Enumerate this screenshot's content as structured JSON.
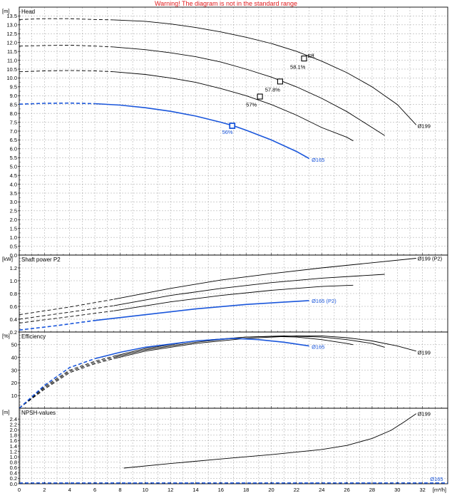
{
  "banner": "Warning! The diagram is not in the standard range",
  "colors": {
    "blue": "#1a56db",
    "black": "#000000",
    "grid": "#888888"
  },
  "x_axis": {
    "unit": "[m³/h]",
    "min": 0,
    "max": 34,
    "ticks": [
      0,
      2,
      4,
      6,
      8,
      10,
      12,
      14,
      16,
      18,
      20,
      22,
      24,
      26,
      28,
      30,
      32
    ]
  },
  "chart_data": [
    {
      "type": "line",
      "title": "Head",
      "ylabel": "[m]",
      "ylim": [
        0,
        14
      ],
      "yticks": [
        "0.0",
        "0.5",
        "1.0",
        "1.5",
        "2.0",
        "2.5",
        "3.0",
        "3.5",
        "4.0",
        "4.5",
        "5.0",
        "5.5",
        "6.0",
        "6.5",
        "7.0",
        "7.5",
        "8.0",
        "8.5",
        "9.0",
        "9.5",
        "10.0",
        "10.5",
        "11.0",
        "11.5",
        "12.0",
        "12.5",
        "13.0",
        "13.5"
      ],
      "grid": true,
      "series": [
        {
          "name": "Ø199",
          "color": "black",
          "dash_until": 7.5,
          "x": [
            0,
            2,
            4,
            6,
            7.5,
            10,
            12,
            14,
            16,
            18,
            20,
            22,
            24,
            26,
            28,
            30,
            31.5
          ],
          "y": [
            13.3,
            13.35,
            13.35,
            13.3,
            13.28,
            13.2,
            13.05,
            12.85,
            12.6,
            12.3,
            11.95,
            11.5,
            10.95,
            10.3,
            9.5,
            8.5,
            7.35
          ]
        },
        {
          "name": "",
          "color": "black",
          "dash_until": 7.5,
          "x": [
            0,
            2,
            4,
            6,
            7.5,
            10,
            12,
            14,
            16,
            18,
            20,
            22,
            24,
            26,
            28,
            29
          ],
          "y": [
            11.8,
            11.83,
            11.85,
            11.8,
            11.75,
            11.6,
            11.42,
            11.2,
            10.9,
            10.5,
            10.05,
            9.5,
            8.85,
            8.1,
            7.2,
            6.75
          ]
        },
        {
          "name": "",
          "color": "black",
          "dash_until": 7.5,
          "x": [
            0,
            2,
            4,
            6,
            7.5,
            10,
            12,
            14,
            16,
            18,
            20,
            22,
            24,
            26,
            26.5
          ],
          "y": [
            10.35,
            10.4,
            10.42,
            10.4,
            10.35,
            10.2,
            10.0,
            9.75,
            9.4,
            9.0,
            8.5,
            7.9,
            7.2,
            6.65,
            6.45
          ]
        },
        {
          "name": "Ø165",
          "color": "blue",
          "dash_until": 6,
          "x": [
            0,
            2,
            4,
            6,
            8,
            10,
            12,
            14,
            16,
            17,
            18,
            20,
            22,
            23
          ],
          "y": [
            8.52,
            8.57,
            8.58,
            8.55,
            8.47,
            8.32,
            8.12,
            7.85,
            7.5,
            7.3,
            7.05,
            6.5,
            5.85,
            5.45
          ]
        }
      ],
      "markers": [
        {
          "x": 22.6,
          "y": 11.1,
          "label": "Eff.",
          "color": "black"
        },
        {
          "x": 20.7,
          "y": 9.8,
          "label": "",
          "color": "black"
        },
        {
          "x": 19.1,
          "y": 8.95,
          "label": "",
          "color": "black"
        },
        {
          "x": 16.9,
          "y": 7.3,
          "label": "",
          "color": "blue"
        }
      ],
      "annotations": [
        {
          "x": 21.5,
          "y": 10.65,
          "text": "58.1%",
          "color": "black"
        },
        {
          "x": 19.5,
          "y": 9.35,
          "text": "57.8%",
          "color": "black"
        },
        {
          "x": 18.0,
          "y": 8.5,
          "text": "57%",
          "color": "black"
        },
        {
          "x": 16.1,
          "y": 6.95,
          "text": "56%",
          "color": "blue"
        },
        {
          "x": 31.6,
          "y": 7.3,
          "text": "Ø199",
          "color": "black"
        },
        {
          "x": 23.2,
          "y": 5.4,
          "text": "Ø165",
          "color": "blue"
        }
      ]
    },
    {
      "type": "line",
      "title": "Shaft power P2",
      "ylabel": "[kW]",
      "ylim": [
        0.2,
        1.4
      ],
      "yticks": [
        "0.2",
        "0.4",
        "0.6",
        "0.8",
        "1.0",
        "1.2"
      ],
      "grid": true,
      "series": [
        {
          "name": "Ø199 (P2)",
          "color": "black",
          "dash_until": 7.5,
          "x": [
            0,
            4,
            7.5,
            12,
            16,
            20,
            24,
            28,
            31.5
          ],
          "y": [
            0.47,
            0.59,
            0.71,
            0.88,
            1.01,
            1.11,
            1.2,
            1.28,
            1.35
          ]
        },
        {
          "name": "",
          "color": "black",
          "dash_until": 7.5,
          "x": [
            0,
            4,
            7.5,
            12,
            16,
            20,
            24,
            29
          ],
          "y": [
            0.4,
            0.51,
            0.61,
            0.77,
            0.88,
            0.97,
            1.04,
            1.1
          ]
        },
        {
          "name": "",
          "color": "black",
          "dash_until": 7.5,
          "x": [
            0,
            4,
            7.5,
            12,
            16,
            20,
            24,
            26.5
          ],
          "y": [
            0.34,
            0.44,
            0.53,
            0.67,
            0.77,
            0.85,
            0.91,
            0.93
          ]
        },
        {
          "name": "Ø165 (P2)",
          "color": "blue",
          "dash_until": 6,
          "x": [
            0,
            3,
            6,
            10,
            14,
            18,
            23
          ],
          "y": [
            0.23,
            0.3,
            0.38,
            0.47,
            0.56,
            0.63,
            0.69
          ]
        }
      ],
      "annotations": [
        {
          "x": 31.6,
          "y": 1.35,
          "text": "Ø199 (P2)",
          "color": "black"
        },
        {
          "x": 23.2,
          "y": 0.69,
          "text": "Ø165 (P2)",
          "color": "blue"
        }
      ]
    },
    {
      "type": "line",
      "title": "Efficiency",
      "ylabel": "[%]",
      "ylim": [
        0,
        60
      ],
      "yticks": [
        "10",
        "20",
        "30",
        "40",
        "50"
      ],
      "grid": true,
      "series": [
        {
          "name": "Ø199",
          "color": "black",
          "dash_until": 7.5,
          "x": [
            0,
            2,
            4,
            6,
            7.5,
            10,
            14,
            18,
            22,
            24,
            26,
            28,
            30,
            31.5
          ],
          "y": [
            0,
            15,
            28,
            35,
            39,
            45,
            51,
            55,
            57,
            57,
            55.5,
            53,
            49,
            45
          ]
        },
        {
          "name": "",
          "color": "black",
          "dash_until": 7.5,
          "x": [
            0,
            2,
            4,
            6,
            7.5,
            10,
            14,
            18,
            21,
            24,
            26,
            28,
            29
          ],
          "y": [
            0,
            16,
            29,
            36,
            40,
            46,
            52,
            56,
            57,
            56,
            54,
            51,
            48
          ]
        },
        {
          "name": "",
          "color": "black",
          "dash_until": 7.5,
          "x": [
            0,
            2,
            4,
            6,
            7.5,
            10,
            14,
            18,
            20,
            22,
            24,
            26,
            26.5
          ],
          "y": [
            0,
            17,
            30,
            37,
            41,
            47,
            53,
            56,
            56.5,
            56,
            54,
            51,
            50
          ]
        },
        {
          "name": "Ø165",
          "color": "blue",
          "dash_until": 6,
          "x": [
            0,
            2,
            4,
            6,
            8,
            10,
            14,
            17,
            19,
            21,
            23
          ],
          "y": [
            0,
            18,
            32,
            39,
            44,
            48,
            53,
            55,
            54,
            52,
            49
          ]
        }
      ],
      "annotations": [
        {
          "x": 31.6,
          "y": 44,
          "text": "Ø199",
          "color": "black"
        },
        {
          "x": 23.2,
          "y": 48.5,
          "text": "Ø165",
          "color": "blue"
        }
      ]
    },
    {
      "type": "line",
      "title": "NPSH-values",
      "ylabel": "[m]",
      "ylim": [
        0,
        2.8
      ],
      "yticks": [
        "0.0",
        "0.2",
        "0.4",
        "0.6",
        "0.8",
        "1.0",
        "1.2",
        "1.4",
        "1.6",
        "1.8",
        "2.0",
        "2.2",
        "2.4"
      ],
      "grid": true,
      "series": [
        {
          "name": "Ø199",
          "color": "black",
          "dash_until": 0,
          "x": [
            8.3,
            12,
            16,
            20,
            24,
            26,
            28,
            29.5,
            30.5,
            31.5
          ],
          "y": [
            0.58,
            0.75,
            0.92,
            1.08,
            1.27,
            1.42,
            1.68,
            1.98,
            2.28,
            2.6
          ]
        },
        {
          "name": "Ø165",
          "color": "blue",
          "dash_until": 40,
          "x": [
            0,
            4,
            8,
            12,
            16,
            20,
            24,
            28,
            32,
            34
          ],
          "y": [
            0.03,
            0.03,
            0.03,
            0.03,
            0.03,
            0.03,
            0.03,
            0.03,
            0.03,
            0.03
          ]
        }
      ],
      "annotations": [
        {
          "x": 31.6,
          "y": 2.6,
          "text": "Ø199",
          "color": "black"
        },
        {
          "x": 32.6,
          "y": 0.18,
          "text": "Ø165",
          "color": "blue"
        }
      ]
    }
  ]
}
